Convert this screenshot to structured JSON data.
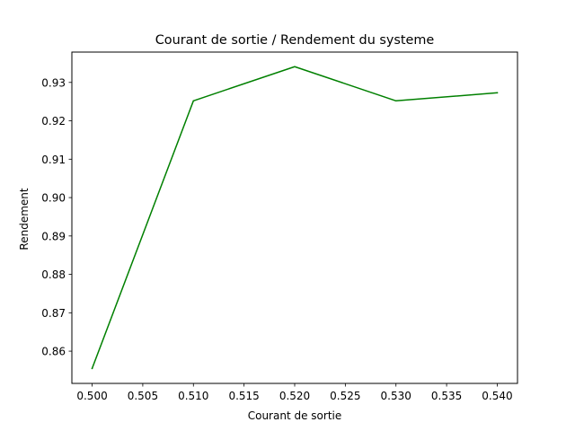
{
  "chart_data": {
    "type": "line",
    "title": "Courant de sortie / Rendement du systeme",
    "xlabel": "Courant de sortie",
    "ylabel": "Rendement",
    "xlim": [
      0.498,
      0.542
    ],
    "ylim": [
      0.8516,
      0.9379
    ],
    "x_ticks": [
      "0.500",
      "0.505",
      "0.510",
      "0.515",
      "0.520",
      "0.525",
      "0.530",
      "0.535",
      "0.540"
    ],
    "y_ticks": [
      "0.86",
      "0.87",
      "0.88",
      "0.89",
      "0.90",
      "0.91",
      "0.92",
      "0.93"
    ],
    "grid": false,
    "legend": "none",
    "series": [
      {
        "color": "#008000",
        "x": [
          0.5,
          0.51,
          0.52,
          0.53,
          0.54
        ],
        "y": [
          0.8555,
          0.9252,
          0.9341,
          0.9252,
          0.9273
        ]
      }
    ]
  }
}
